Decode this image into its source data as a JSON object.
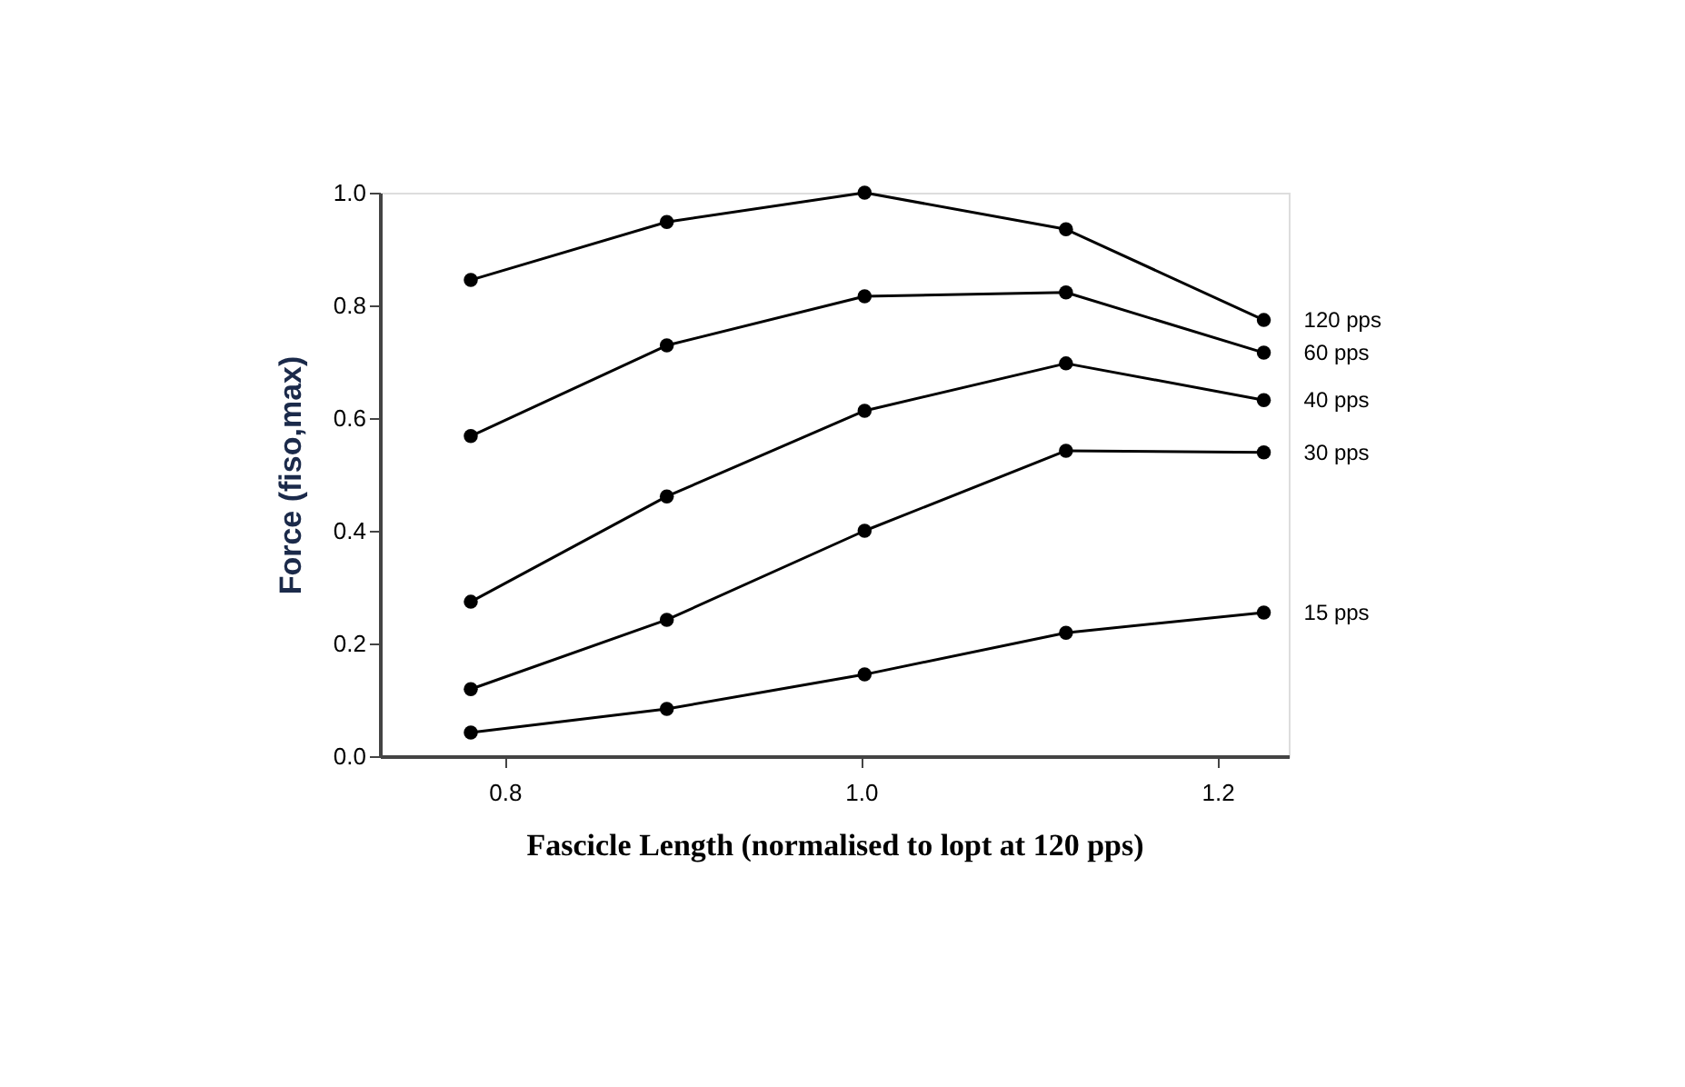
{
  "chart_data": {
    "type": "line",
    "xlabel": "Fascicle Length (normalised to lopt at 120 pps)",
    "ylabel": "Force (fiso,max)",
    "x": [
      0.781,
      0.891,
      1.002,
      1.115,
      1.226
    ],
    "series": [
      {
        "name": "120 pps",
        "color": "#000000",
        "values": [
          0.845,
          0.948,
          1.0,
          0.935,
          0.774
        ]
      },
      {
        "name": "60 pps",
        "color": "#000000",
        "values": [
          0.568,
          0.729,
          0.816,
          0.823,
          0.716
        ]
      },
      {
        "name": "40 pps",
        "color": "#000000",
        "values": [
          0.274,
          0.461,
          0.613,
          0.697,
          0.632
        ]
      },
      {
        "name": "30 pps",
        "color": "#000000",
        "values": [
          0.119,
          0.242,
          0.4,
          0.542,
          0.539
        ]
      },
      {
        "name": "15 pps",
        "color": "#000000",
        "values": [
          0.042,
          0.084,
          0.145,
          0.219,
          0.255
        ]
      }
    ],
    "xlim": [
      0.73,
      1.24
    ],
    "xticks": [
      {
        "value": 0.8,
        "label": "0.8"
      },
      {
        "value": 1.0,
        "label": "1.0"
      },
      {
        "value": 1.2,
        "label": "1.2"
      }
    ],
    "ylim": [
      0.0,
      1.0
    ],
    "yticks": [
      {
        "value": 0.0,
        "label": "0.0"
      },
      {
        "value": 0.2,
        "label": "0.2"
      },
      {
        "value": 0.4,
        "label": "0.4"
      },
      {
        "value": 0.6,
        "label": "0.6"
      },
      {
        "value": 0.8,
        "label": "0.8"
      },
      {
        "value": 1.0,
        "label": "1.0"
      }
    ],
    "grid": false,
    "legend": false,
    "marker": "circle",
    "line_style": "solid"
  }
}
